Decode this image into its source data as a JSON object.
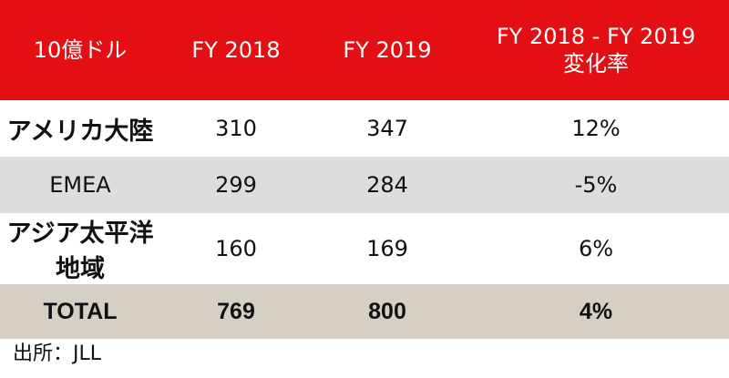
{
  "chart_data": {
    "type": "table",
    "columns": [
      "10億ドル",
      "FY 2018",
      "FY 2019",
      "FY 2018 - FY 2019 変化率"
    ],
    "header_lines": [
      [
        "10億ドル"
      ],
      [
        "FY 2018"
      ],
      [
        "FY 2019"
      ],
      [
        "FY 2018 - FY 2019",
        "変化率"
      ]
    ],
    "rows": [
      {
        "region": "アメリカ大陸",
        "fy2018": "310",
        "fy2019": "347",
        "change": "12%"
      },
      {
        "region": "EMEA",
        "fy2018": "299",
        "fy2019": "284",
        "change": "-5%"
      },
      {
        "region": "アジア太平洋地域",
        "fy2018": "160",
        "fy2019": "169",
        "change": "6%"
      }
    ],
    "total": {
      "region": "TOTAL",
      "fy2018": "769",
      "fy2019": "800",
      "change": "4%"
    },
    "source": "出所：JLL"
  },
  "colors": {
    "header_bg": "#e30f13",
    "header_text": "#ffffff",
    "row_alt_bg": "#dddddd",
    "total_bg": "#d6cfc4"
  }
}
